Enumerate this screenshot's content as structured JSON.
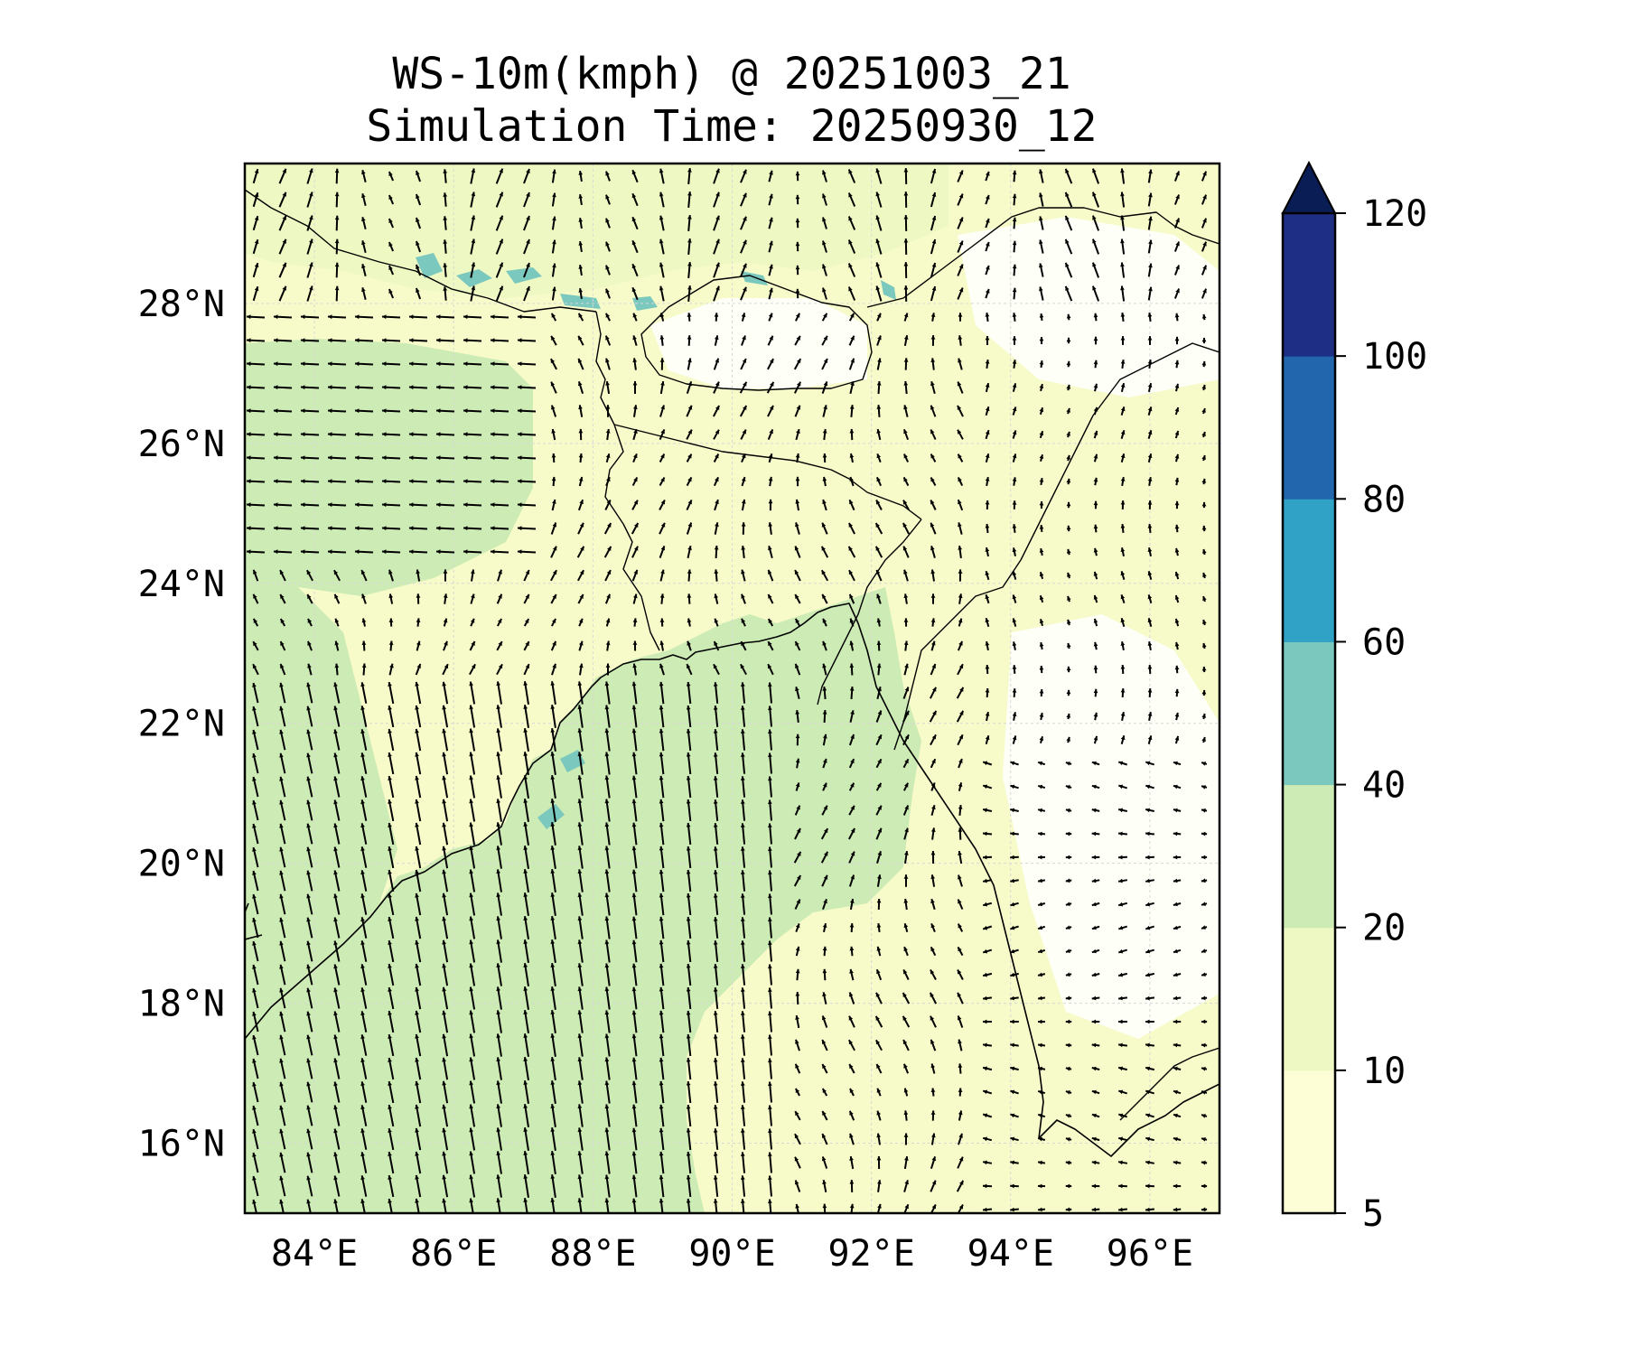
{
  "title": {
    "line1": "WS-10m(kmph) @ 20251003_21",
    "line2": "Simulation Time: 20250930_12"
  },
  "map": {
    "lon_range": [
      83,
      97
    ],
    "lat_range": [
      15,
      30
    ],
    "x_ticks": [
      {
        "value": 84,
        "label": "84°E"
      },
      {
        "value": 86,
        "label": "86°E"
      },
      {
        "value": 88,
        "label": "88°E"
      },
      {
        "value": 90,
        "label": "90°E"
      },
      {
        "value": 92,
        "label": "92°E"
      },
      {
        "value": 94,
        "label": "94°E"
      },
      {
        "value": 96,
        "label": "96°E"
      }
    ],
    "y_ticks": [
      {
        "value": 16,
        "label": "16°N"
      },
      {
        "value": 18,
        "label": "18°N"
      },
      {
        "value": 20,
        "label": "20°N"
      },
      {
        "value": 22,
        "label": "22°N"
      },
      {
        "value": 24,
        "label": "24°N"
      },
      {
        "value": 26,
        "label": "26°N"
      },
      {
        "value": 28,
        "label": "28°N"
      }
    ],
    "grid": true,
    "background_color": "#f7fbc9",
    "sea_color": "#cdebb4",
    "land_light_color": "#eef8c2"
  },
  "colorbar": {
    "levels": [
      {
        "value": 5,
        "label": "5"
      },
      {
        "value": 10,
        "label": "10"
      },
      {
        "value": 20,
        "label": "20"
      },
      {
        "value": 40,
        "label": "40"
      },
      {
        "value": 60,
        "label": "60"
      },
      {
        "value": 80,
        "label": "80"
      },
      {
        "value": 100,
        "label": "100"
      },
      {
        "value": 120,
        "label": "120"
      }
    ],
    "colors": [
      "#fdfed6",
      "#eef8c2",
      "#cdebb4",
      "#7bc8bf",
      "#2fa2c6",
      "#2266ad",
      "#1d2e84"
    ],
    "extend_color": "#0b1d55",
    "extend": "max"
  }
}
